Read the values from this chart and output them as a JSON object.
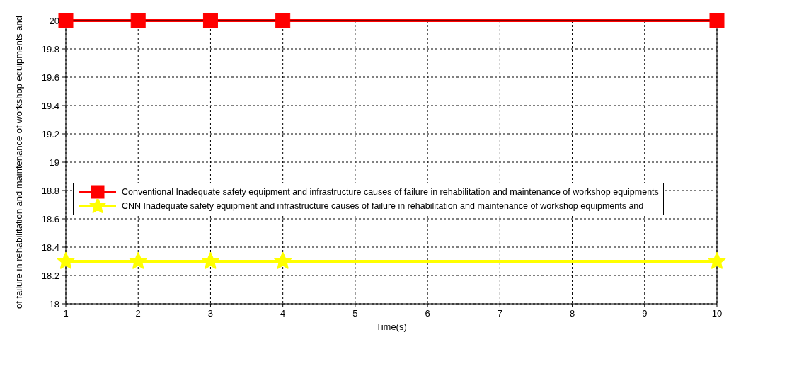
{
  "chart_data": {
    "type": "line",
    "xlabel": "Time(s)",
    "ylabel": "of failure in rehabilitation and maintenance of workshop equipments and",
    "x": [
      1,
      2,
      3,
      4,
      10
    ],
    "xlim": [
      1,
      10
    ],
    "xticks": [
      1,
      2,
      3,
      4,
      5,
      6,
      7,
      8,
      9,
      10
    ],
    "ylim": [
      18,
      20
    ],
    "yticks": [
      18,
      18.2,
      18.4,
      18.6,
      18.8,
      19,
      19.2,
      19.4,
      19.6,
      19.8,
      20
    ],
    "grid": true,
    "legend": "left",
    "line_style": "solid",
    "series": [
      {
        "name": "Conventional Inadequate safety equipment and infrastructure causes of failure in rehabilitation and maintenance of workshop equipments",
        "color": "#ff0000",
        "marker": "square",
        "values": [
          20,
          20,
          20,
          20,
          20
        ]
      },
      {
        "name": "CNN Inadequate safety equipment and infrastructure  causes of failure in rehabilitation and maintenance of workshop equipments and",
        "color": "#ffff00",
        "marker": "star",
        "values": [
          18.3,
          18.3,
          18.3,
          18.3,
          18.3
        ]
      }
    ]
  }
}
